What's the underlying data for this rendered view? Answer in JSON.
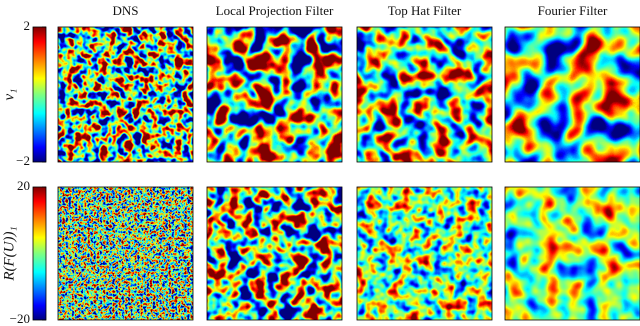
{
  "figure": {
    "columns": [
      "DNS",
      "Local Projection Filter",
      "Top Hat Filter",
      "Fourier Filter"
    ],
    "rows": [
      {
        "label": "v₁",
        "clim": [
          -2,
          2
        ],
        "ticks": [
          2,
          {
            "value": -2,
            "label": "−2"
          }
        ]
      },
      {
        "label": "R(F(U))₁",
        "clim": [
          -20,
          20
        ],
        "ticks": [
          20,
          {
            "value": -20,
            "label": "−20"
          }
        ]
      }
    ]
  }
}
